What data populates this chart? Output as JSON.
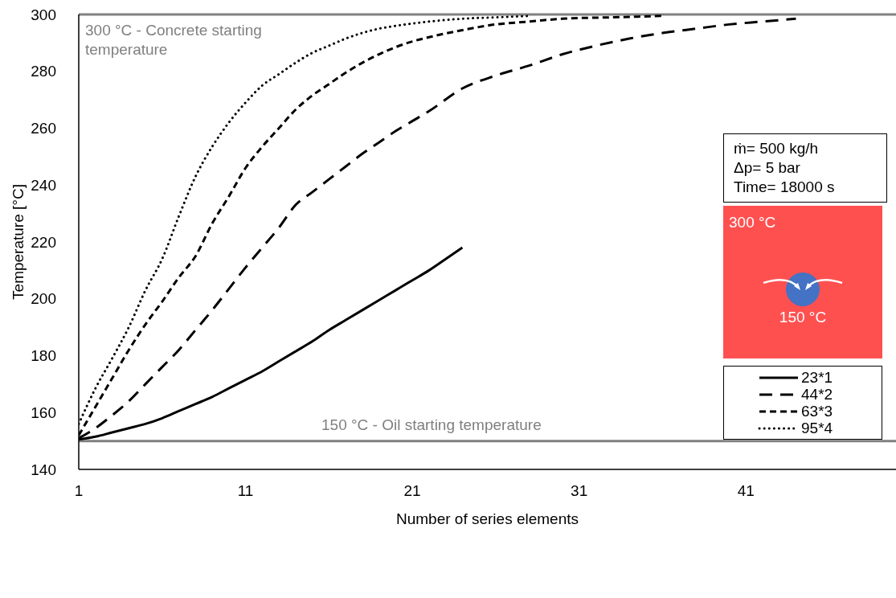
{
  "chart_data": {
    "type": "line",
    "xlabel": "Number of series elements",
    "ylabel": "Temperature [°C]",
    "xlim": [
      1,
      50
    ],
    "xticks": [
      1,
      11,
      21,
      31,
      41
    ],
    "ylim": [
      140,
      300
    ],
    "yticks": [
      140,
      160,
      180,
      200,
      220,
      240,
      260,
      280,
      300
    ],
    "grid": false,
    "legend": "right",
    "marker": "none",
    "series": [
      {
        "name": "23*1",
        "color": "#000000",
        "line_style": "solid",
        "x": [
          1,
          2,
          3,
          4,
          5,
          6,
          7,
          8,
          9,
          10,
          11,
          12,
          13,
          14,
          15,
          16,
          17,
          18,
          19,
          20,
          21,
          22,
          23,
          24
        ],
        "values": [
          150.5,
          151.5,
          153,
          154.5,
          156,
          158,
          160.5,
          163,
          165.5,
          168.5,
          171.5,
          174.5,
          178,
          181.5,
          185,
          189,
          192.5,
          196,
          199.5,
          203,
          206.5,
          210,
          214,
          218
        ]
      },
      {
        "name": "44*2",
        "color": "#000000",
        "line_style": "dashed",
        "x": [
          1,
          2,
          3,
          4,
          5,
          6,
          7,
          8,
          9,
          10,
          11,
          12,
          13,
          14,
          15,
          16,
          17,
          18,
          19,
          20,
          21,
          22,
          24,
          26,
          28,
          30,
          32,
          34,
          36,
          38,
          40,
          42,
          44
        ],
        "values": [
          151,
          154.5,
          159,
          164,
          170,
          176,
          182,
          189,
          196,
          203.5,
          211,
          218,
          225,
          233,
          237.5,
          242,
          246.5,
          251,
          255,
          259,
          262.5,
          266,
          274,
          278.5,
          282,
          286,
          289,
          291.5,
          293.5,
          295,
          296.5,
          297.5,
          298.5
        ]
      },
      {
        "name": "63*3",
        "color": "#000000",
        "line_style": "dashed",
        "x": [
          1,
          2,
          3,
          4,
          5,
          6,
          7,
          8,
          9,
          10,
          11,
          12,
          13,
          14,
          15,
          16,
          17,
          18,
          19,
          20,
          21,
          22,
          24,
          26,
          28,
          30,
          33,
          36
        ],
        "values": [
          152,
          162,
          172,
          182,
          191,
          199,
          207.5,
          215,
          226.5,
          236,
          246,
          253.5,
          260,
          266.5,
          271.5,
          275.5,
          279.5,
          283,
          286,
          288.5,
          290.5,
          292,
          294.5,
          296.5,
          297.5,
          298.5,
          299,
          299.5
        ]
      },
      {
        "name": "95*4",
        "color": "#000000",
        "line_style": "dotted",
        "x": [
          1,
          2,
          3,
          4,
          5,
          6,
          7,
          8,
          9,
          10,
          11,
          12,
          13,
          14,
          15,
          16,
          17,
          18,
          19,
          20,
          22,
          24,
          26,
          28
        ],
        "values": [
          156,
          168.5,
          179,
          190,
          203,
          214,
          229,
          243,
          253.5,
          262,
          269,
          275,
          279,
          283,
          286.5,
          289,
          291.5,
          293.5,
          295,
          296,
          297.5,
          298.5,
          299,
          299.5
        ]
      }
    ],
    "ref_lines": [
      {
        "axis": "y",
        "value": 300,
        "label": "300 °C - Concrete starting temperature",
        "color": "#808080"
      },
      {
        "axis": "y",
        "value": 150,
        "label": "150 °C - Oil starting temperature",
        "color": "#808080"
      }
    ],
    "annotations": [
      "ṁ= 500 kg/h",
      "Δp= 5 bar",
      "Time= 18000 s",
      "300 °C",
      "150 °C"
    ]
  }
}
